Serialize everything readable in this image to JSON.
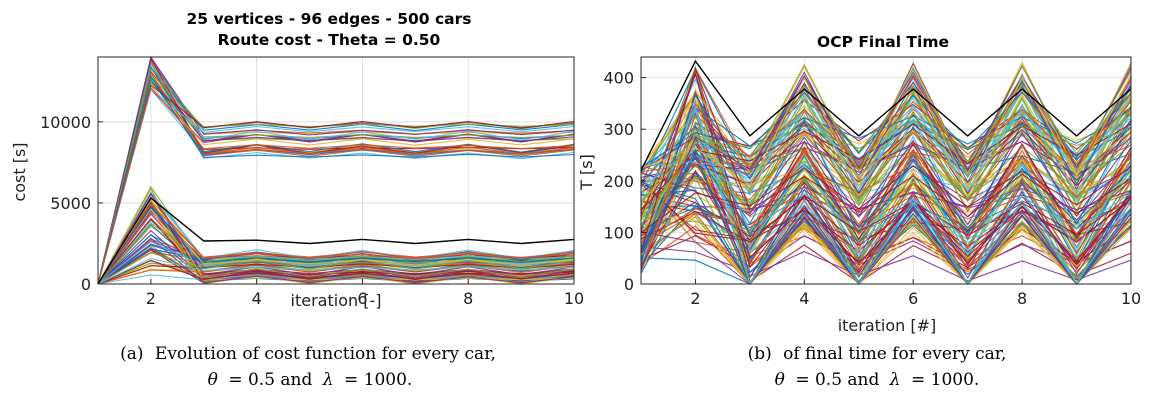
{
  "chart_data": [
    {
      "type": "line",
      "title_lines": [
        "25 vertices - 96 edges - 500 cars",
        "Route cost - Theta = 0.50"
      ],
      "xlabel": "iteration [-]",
      "ylabel": "cost [s]",
      "xlim": [
        1,
        10
      ],
      "ylim": [
        0,
        14000
      ],
      "xticks": [
        2,
        4,
        6,
        8,
        10
      ],
      "yticks": [
        0,
        5000,
        10000
      ],
      "grid": true,
      "x": [
        1,
        2,
        3,
        4,
        5,
        6,
        7,
        8,
        9,
        10
      ],
      "series_count": 500,
      "series_note": "one line per car, multicoloured default palette",
      "highlight_series": {
        "color": "#000000",
        "values": [
          0,
          5300,
          2650,
          2700,
          2500,
          2750,
          2500,
          2750,
          2500,
          2750
        ]
      },
      "groups": [
        {
          "count": 30,
          "start": [
            0,
            0
          ],
          "peak": [
            12000,
            14000
          ],
          "level": [
            7600,
            9800
          ],
          "swing": 300
        },
        {
          "count": 60,
          "start": [
            0,
            0
          ],
          "peak": [
            300,
            6000
          ],
          "level": [
            100,
            1800
          ],
          "swing": 300
        }
      ],
      "caption_letter": "(a)",
      "caption_text_1": "Evolution of cost function for every car,",
      "caption_sym_1": "θ",
      "caption_eq_1": "= 0.5 and",
      "caption_sym_2": "λ",
      "caption_eq_2": "= 1000."
    },
    {
      "type": "line",
      "title": "OCP Final Time",
      "xlabel": "iteration [#]",
      "ylabel": "T [s]",
      "xlim": [
        1,
        10
      ],
      "ylim": [
        0,
        440
      ],
      "xticks": [
        2,
        4,
        6,
        8,
        10
      ],
      "yticks": [
        0,
        100,
        200,
        300,
        400
      ],
      "grid": true,
      "x": [
        1,
        2,
        3,
        4,
        5,
        6,
        7,
        8,
        9,
        10
      ],
      "series_count": 500,
      "series_note": "one line per car, zig-zag between even and odd iterations",
      "highlight_series": {
        "color": "#000000",
        "values": [
          220,
          432,
          287,
          378,
          287,
          378,
          287,
          378,
          287,
          378
        ]
      },
      "groups": [
        {
          "count": 140,
          "start": [
            20,
            230
          ],
          "peak": [
            40,
            420
          ],
          "level": [
            10,
            300
          ],
          "swing": 120
        }
      ],
      "caption_letter": "(b)",
      "caption_text_1": "of final time for every car,",
      "caption_sym_1": "θ",
      "caption_eq_1": "= 0.5 and",
      "caption_sym_2": "λ",
      "caption_eq_2": "= 1000."
    }
  ],
  "colors": {
    "palette": [
      "#0072BD",
      "#D95319",
      "#EDB120",
      "#7E2F8E",
      "#77AC30",
      "#4DBEEE",
      "#A2142F"
    ],
    "grid": "#dedede",
    "axis": "#262626"
  }
}
